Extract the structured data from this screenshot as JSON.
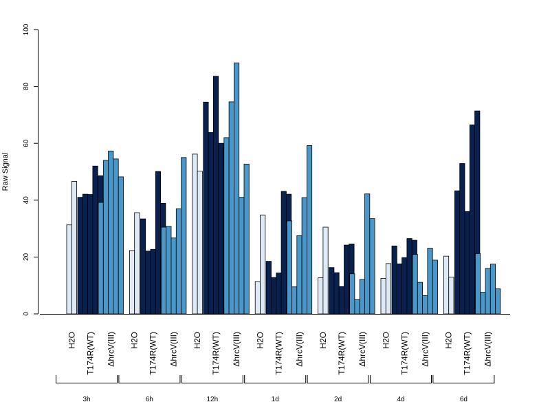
{
  "chart_data": {
    "type": "bar",
    "title": "",
    "xlabel": "",
    "ylabel": "Raw Signal",
    "ylim": [
      0,
      100
    ],
    "yticks": [
      0,
      20,
      40,
      60,
      80,
      100
    ],
    "grid": false,
    "legend": "none",
    "timepoints": [
      "3h",
      "6h",
      "12h",
      "1d",
      "2d",
      "4d",
      "6d"
    ],
    "conditions": [
      {
        "label": "H2O",
        "color": "#deebf7"
      },
      {
        "label": "T174R(WT)",
        "color": "#08214f"
      },
      {
        "label": "ΔhrcV(III)",
        "color": "#4a98c9"
      }
    ],
    "groups": [
      {
        "time": "3h",
        "values": [
          [
            31.3,
            46.6
          ],
          [
            41.0,
            42.1,
            42.0,
            52.0,
            48.6
          ],
          [
            39.2,
            54.0,
            57.3,
            54.5,
            48.2
          ]
        ]
      },
      {
        "time": "6h",
        "values": [
          [
            22.3,
            35.6
          ],
          [
            33.4,
            22.1,
            22.7,
            50.1,
            38.9
          ],
          [
            30.5,
            30.8,
            26.7,
            37.0,
            55.0
          ]
        ]
      },
      {
        "time": "12h",
        "values": [
          [
            56.2,
            50.2
          ],
          [
            74.5,
            63.8,
            83.6,
            60.0,
            58.3
          ],
          [
            62.0,
            74.6,
            88.3,
            41.0,
            52.7
          ]
        ]
      },
      {
        "time": "1d",
        "values": [
          [
            11.4,
            34.8
          ],
          [
            18.5,
            12.8,
            14.4,
            43.1,
            42.1
          ],
          [
            32.7,
            9.5,
            27.5,
            40.9,
            59.2
          ]
        ]
      },
      {
        "time": "2d",
        "values": [
          [
            12.7,
            30.5
          ],
          [
            16.3,
            14.5,
            9.6,
            24.2,
            24.6
          ],
          [
            14.1,
            5.0,
            12.1,
            42.2,
            33.5
          ]
        ]
      },
      {
        "time": "4d",
        "values": [
          [
            12.5,
            17.7
          ],
          [
            23.9,
            17.6,
            19.8,
            26.5,
            25.9
          ],
          [
            20.9,
            11.1,
            6.4,
            23.1,
            18.9
          ]
        ]
      },
      {
        "time": "6d",
        "values": [
          [
            20.3,
            12.9
          ],
          [
            43.3,
            52.9,
            36.0,
            66.5,
            71.4
          ],
          [
            21.2,
            7.6,
            16.0,
            17.5,
            8.8
          ]
        ]
      }
    ]
  }
}
